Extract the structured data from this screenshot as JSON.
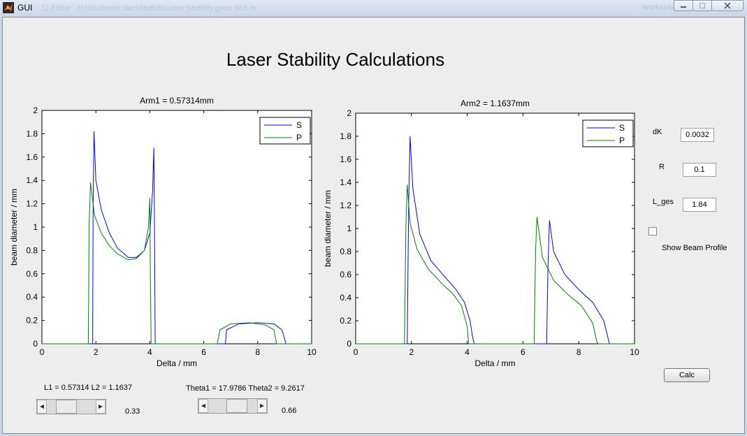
{
  "window": {
    "title": "GUI",
    "ghost_text": "☐   Editor - H:\\Studentin.sieci\\Matlab\\Laser Stability.gneo GUI.m",
    "ghost_text_right": "Workspace"
  },
  "heading": "Laser Stability Calculations",
  "controls": {
    "dk_label": "dK",
    "dk_value": "0.0032",
    "r_label": "R",
    "r_value": "0.1",
    "lges_label": "L_ges",
    "lges_value": "1.84",
    "show_beam_profile_label": "Show Beam Profile",
    "show_beam_profile_checked": false,
    "calc_label": "Calc"
  },
  "sliders": [
    {
      "caption": "L1 = 0.57314 L2 = 1.1637",
      "value_text": "0.33",
      "value": 0.33
    },
    {
      "caption": "Theta1 = 17.9786 Theta2 = 9.2617",
      "value_text": "0.66",
      "value": 0.66
    }
  ],
  "colors": {
    "S": "#0000ff",
    "P": "#008000",
    "axes": "#000000"
  },
  "chart_data": [
    {
      "type": "line",
      "title": "Arm1 = 0.57314mm",
      "xlabel": "Delta / mm",
      "ylabel": "beam diameter / mm",
      "xlim": [
        0,
        10
      ],
      "ylim": [
        0,
        2
      ],
      "xticks": [
        0,
        2,
        4,
        6,
        8,
        10
      ],
      "yticks": [
        0,
        0.2,
        0.4,
        0.6,
        0.8,
        1,
        1.2,
        1.4,
        1.6,
        1.8,
        2
      ],
      "legend": "top-right",
      "series": [
        {
          "name": "S",
          "color": "#0000ff",
          "points": [
            [
              0,
              0
            ],
            [
              1.88,
              0
            ],
            [
              1.9,
              1.2
            ],
            [
              1.93,
              1.82
            ],
            [
              2.0,
              1.4
            ],
            [
              2.2,
              1.15
            ],
            [
              2.5,
              0.95
            ],
            [
              2.8,
              0.82
            ],
            [
              3.2,
              0.74
            ],
            [
              3.5,
              0.74
            ],
            [
              3.8,
              0.8
            ],
            [
              4.0,
              0.95
            ],
            [
              4.1,
              1.3
            ],
            [
              4.15,
              1.68
            ],
            [
              4.18,
              0.8
            ],
            [
              4.2,
              0
            ],
            [
              6.8,
              0
            ],
            [
              6.85,
              0.12
            ],
            [
              7.3,
              0.17
            ],
            [
              8.0,
              0.18
            ],
            [
              8.6,
              0.17
            ],
            [
              8.9,
              0.12
            ],
            [
              9.05,
              0
            ],
            [
              10,
              0
            ]
          ]
        },
        {
          "name": "P",
          "color": "#008000",
          "points": [
            [
              0,
              0
            ],
            [
              1.72,
              0
            ],
            [
              1.75,
              1.0
            ],
            [
              1.8,
              1.38
            ],
            [
              1.95,
              1.1
            ],
            [
              2.2,
              0.95
            ],
            [
              2.5,
              0.84
            ],
            [
              2.8,
              0.77
            ],
            [
              3.2,
              0.72
            ],
            [
              3.5,
              0.73
            ],
            [
              3.8,
              0.8
            ],
            [
              3.95,
              1.0
            ],
            [
              4.0,
              1.25
            ],
            [
              4.02,
              0.6
            ],
            [
              4.05,
              0
            ],
            [
              6.5,
              0
            ],
            [
              6.6,
              0.12
            ],
            [
              7.0,
              0.17
            ],
            [
              7.7,
              0.18
            ],
            [
              8.3,
              0.16
            ],
            [
              8.6,
              0.12
            ],
            [
              8.7,
              0
            ],
            [
              10,
              0
            ]
          ]
        }
      ]
    },
    {
      "type": "line",
      "title": "Arm2 = 1.1637mm",
      "xlabel": "Delta / mm",
      "ylabel": "beam diameter / mm",
      "xlim": [
        0,
        10
      ],
      "ylim": [
        0,
        2
      ],
      "xticks": [
        0,
        2,
        4,
        6,
        8,
        10
      ],
      "yticks": [
        0,
        0.2,
        0.4,
        0.6,
        0.8,
        1,
        1.2,
        1.4,
        1.6,
        1.8,
        2
      ],
      "legend": "top-right",
      "series": [
        {
          "name": "S",
          "color": "#0000ff",
          "points": [
            [
              0,
              0
            ],
            [
              1.85,
              0
            ],
            [
              1.9,
              1.2
            ],
            [
              1.95,
              1.8
            ],
            [
              2.05,
              1.35
            ],
            [
              2.3,
              0.95
            ],
            [
              2.7,
              0.72
            ],
            [
              3.2,
              0.58
            ],
            [
              3.6,
              0.47
            ],
            [
              3.9,
              0.36
            ],
            [
              4.1,
              0.2
            ],
            [
              4.2,
              0.05
            ],
            [
              4.25,
              0
            ],
            [
              6.85,
              0
            ],
            [
              6.9,
              0.7
            ],
            [
              6.95,
              1.07
            ],
            [
              7.1,
              0.8
            ],
            [
              7.5,
              0.6
            ],
            [
              8.0,
              0.47
            ],
            [
              8.5,
              0.36
            ],
            [
              8.9,
              0.2
            ],
            [
              9.05,
              0.05
            ],
            [
              9.1,
              0
            ],
            [
              10,
              0
            ]
          ]
        },
        {
          "name": "P",
          "color": "#008000",
          "points": [
            [
              0,
              0
            ],
            [
              1.75,
              0
            ],
            [
              1.8,
              1.0
            ],
            [
              1.85,
              1.38
            ],
            [
              1.95,
              1.05
            ],
            [
              2.2,
              0.82
            ],
            [
              2.6,
              0.65
            ],
            [
              3.1,
              0.52
            ],
            [
              3.5,
              0.43
            ],
            [
              3.8,
              0.33
            ],
            [
              4.0,
              0.15
            ],
            [
              4.05,
              0
            ],
            [
              6.4,
              0
            ],
            [
              6.45,
              0.8
            ],
            [
              6.5,
              1.1
            ],
            [
              6.7,
              0.75
            ],
            [
              7.1,
              0.55
            ],
            [
              7.6,
              0.43
            ],
            [
              8.1,
              0.33
            ],
            [
              8.5,
              0.18
            ],
            [
              8.65,
              0.02
            ],
            [
              8.7,
              0
            ],
            [
              10,
              0
            ]
          ]
        }
      ]
    }
  ]
}
